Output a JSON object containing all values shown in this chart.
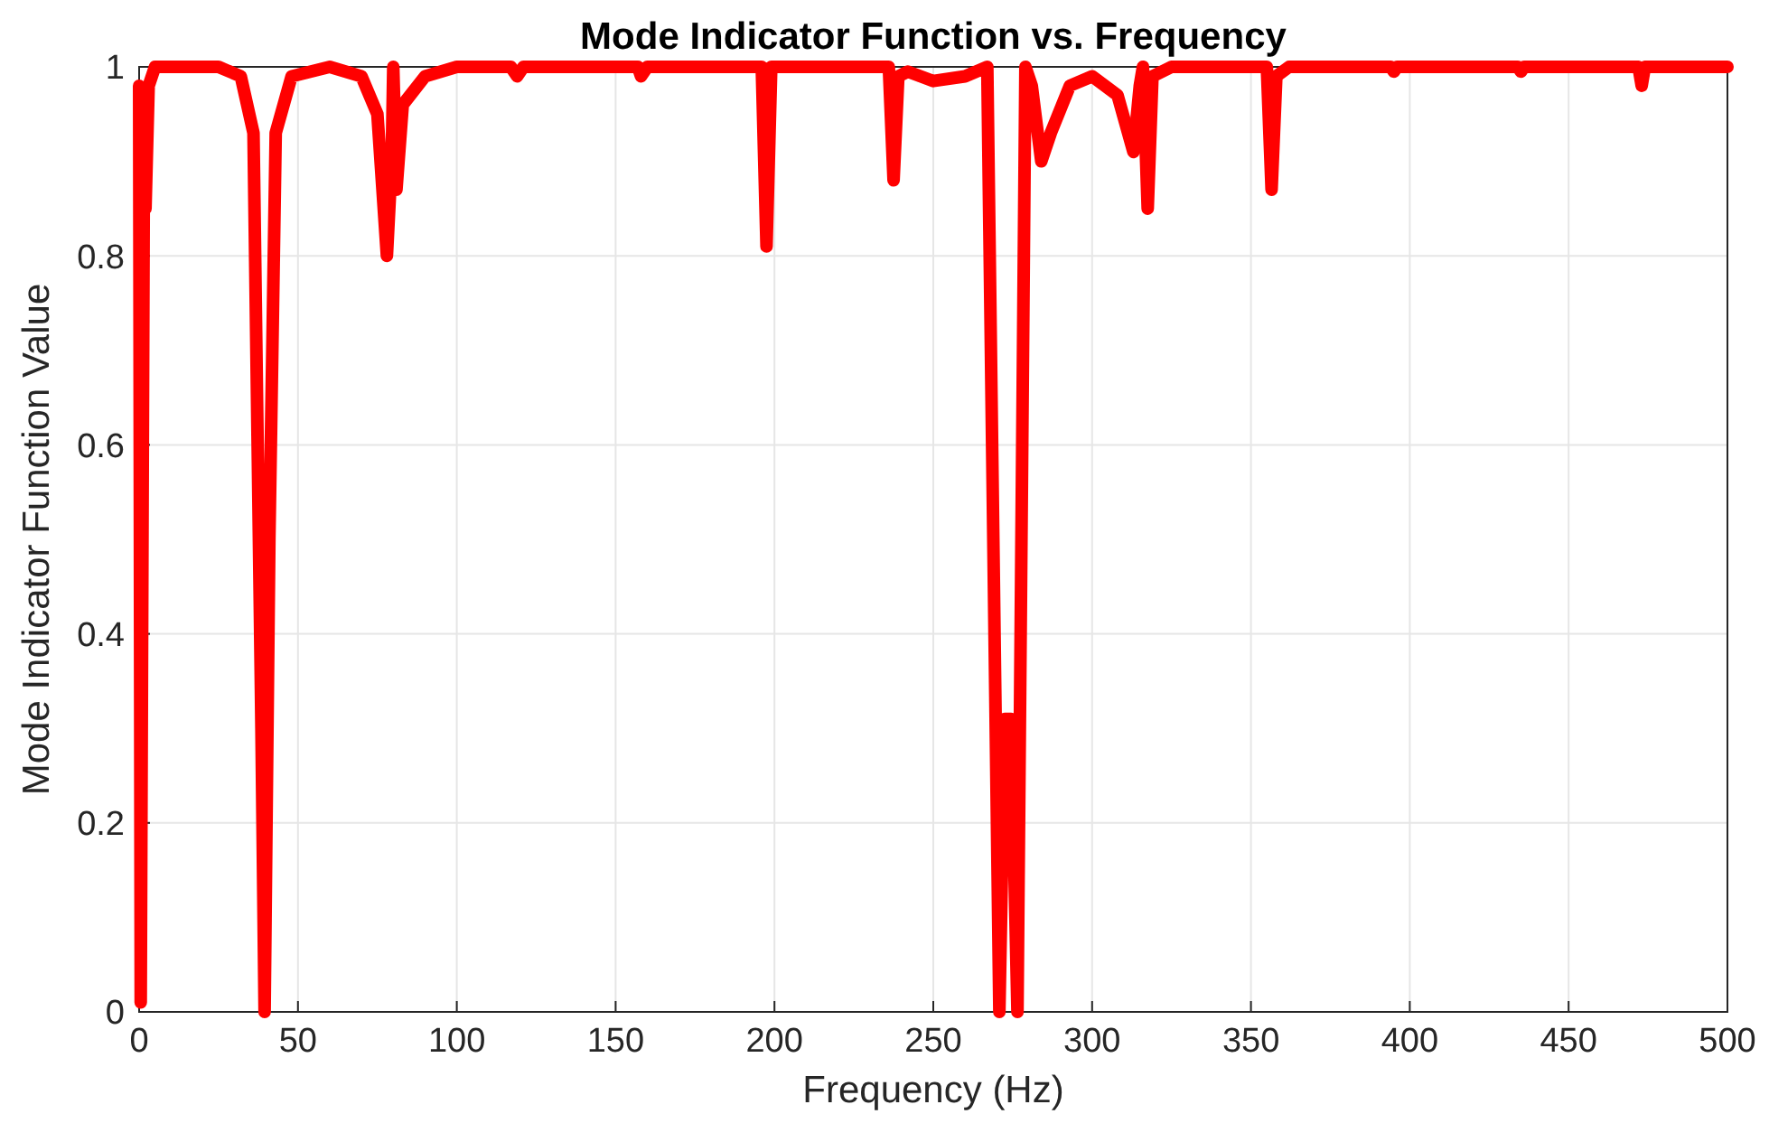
{
  "chart_data": {
    "type": "line",
    "title": "Mode Indicator Function vs. Frequency",
    "xlabel": "Frequency (Hz)",
    "ylabel": "Mode Indicator Function Value",
    "x": [
      0,
      0.5,
      1.5,
      2,
      3,
      5,
      25,
      32,
      36,
      38.5,
      39.5,
      41,
      43,
      48,
      60,
      70,
      75,
      78,
      79.5,
      80,
      81,
      83,
      90,
      100,
      117,
      119,
      121,
      157,
      158,
      160,
      196,
      197.5,
      199,
      236,
      237.5,
      239,
      242,
      250,
      260,
      267,
      270.8,
      272.5,
      274.5,
      276.5,
      279,
      281,
      284,
      287,
      293,
      300,
      308,
      313,
      315,
      316,
      317.5,
      319,
      325,
      355,
      356.5,
      358,
      362,
      394,
      395,
      396,
      434,
      435,
      436,
      472,
      473,
      474,
      500
    ],
    "series": [
      {
        "color": "#ff0000",
        "values": [
          0.98,
          0.01,
          0.9,
          0.85,
          0.98,
          1,
          1,
          0.99,
          0.93,
          0.3,
          0,
          0.5,
          0.93,
          0.99,
          1,
          0.99,
          0.95,
          0.8,
          0.9,
          1,
          0.87,
          0.96,
          0.99,
          1,
          1,
          0.99,
          1,
          1,
          0.99,
          1,
          1,
          0.81,
          1,
          1,
          0.88,
          0.99,
          0.995,
          0.985,
          0.99,
          1,
          0,
          0.31,
          0.31,
          0,
          1,
          0.98,
          0.9,
          0.93,
          0.98,
          0.99,
          0.97,
          0.91,
          0.98,
          1,
          0.85,
          0.99,
          1,
          1,
          0.87,
          0.99,
          1,
          1,
          0.995,
          1,
          1,
          0.995,
          1,
          1,
          0.98,
          1,
          1
        ]
      }
    ],
    "xlim": [
      0,
      500
    ],
    "xticks": [
      0,
      50,
      100,
      150,
      200,
      250,
      300,
      350,
      400,
      450,
      500
    ],
    "ylim": [
      0,
      1
    ],
    "yticks": [
      0,
      0.2,
      0.4,
      0.6,
      0.8,
      1
    ],
    "grid": true,
    "line_style": "solid",
    "marker": "none"
  }
}
